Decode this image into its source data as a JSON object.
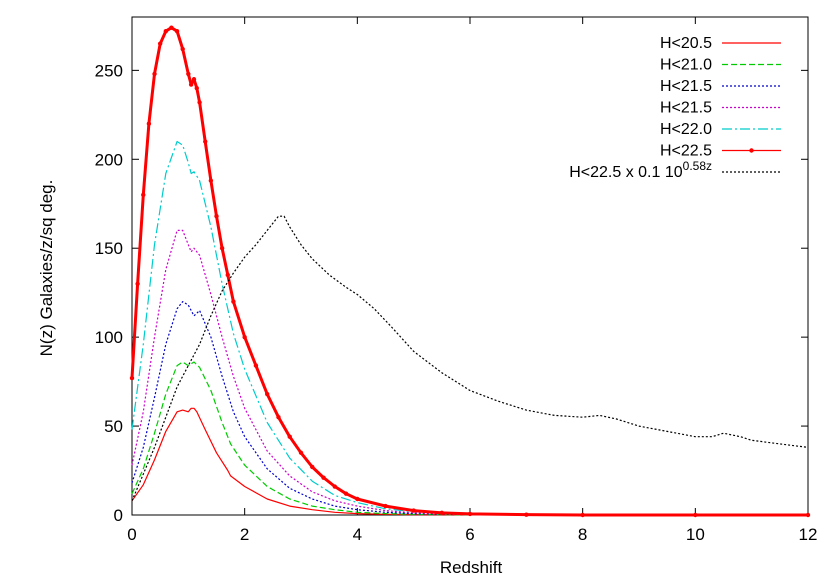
{
  "chart_data": {
    "type": "line",
    "title": "",
    "xlabel": "Redshift",
    "ylabel": "N(z) Galaxies/z/sq deg.",
    "xlim": [
      0,
      12
    ],
    "ylim": [
      0,
      280
    ],
    "xticks": [
      0,
      2,
      4,
      6,
      8,
      10,
      12
    ],
    "yticks": [
      0,
      50,
      100,
      150,
      200,
      250
    ],
    "grid": false,
    "legend_position": "top-right",
    "series": [
      {
        "name": "H<20.5",
        "color": "#ff0000",
        "style": "solid",
        "x": [
          0,
          0.2,
          0.4,
          0.6,
          0.8,
          0.9,
          1.0,
          1.05,
          1.1,
          1.15,
          1.3,
          1.5,
          1.7,
          1.75,
          2.0,
          2.4,
          2.8,
          3.2,
          3.6,
          4.0,
          4.5,
          5.0,
          6.0,
          8.0,
          10.0,
          12.0
        ],
        "y": [
          8,
          17,
          31,
          47,
          58,
          59,
          58,
          60,
          60,
          58,
          48,
          35,
          25,
          22,
          16,
          9,
          5,
          3,
          1.5,
          0.8,
          0.4,
          0.2,
          0.1,
          0,
          0,
          0
        ]
      },
      {
        "name": "H<21.0",
        "color": "#00cc00",
        "style": "dashed",
        "x": [
          0,
          0.2,
          0.4,
          0.6,
          0.8,
          0.9,
          1.0,
          1.1,
          1.2,
          1.4,
          1.6,
          1.75,
          2.0,
          2.4,
          2.8,
          3.2,
          3.6,
          4.0,
          4.5,
          5.0,
          6.0,
          8.0,
          10.0,
          12.0
        ],
        "y": [
          12,
          26,
          46,
          68,
          84,
          86,
          84,
          86,
          83,
          70,
          52,
          40,
          28,
          16,
          9,
          5,
          3,
          1.5,
          0.8,
          0.4,
          0.1,
          0,
          0,
          0
        ]
      },
      {
        "name": "H<21.5",
        "color": "#0000cc",
        "style": "dotted",
        "x": [
          0,
          0.2,
          0.4,
          0.6,
          0.8,
          0.9,
          1.0,
          1.1,
          1.2,
          1.4,
          1.6,
          1.8,
          2.0,
          2.4,
          2.8,
          3.2,
          3.6,
          4.0,
          4.5,
          5.0,
          6.0,
          8.0,
          10.0,
          12.0
        ],
        "y": [
          18,
          38,
          66,
          96,
          116,
          120,
          118,
          112,
          115,
          100,
          78,
          58,
          44,
          26,
          15,
          9,
          5,
          3,
          1.5,
          0.8,
          0.2,
          0,
          0,
          0
        ]
      },
      {
        "name": "H<21.5",
        "color": "#cc00cc",
        "style": "dotted",
        "x": [
          0,
          0.2,
          0.4,
          0.6,
          0.8,
          0.9,
          1.0,
          1.05,
          1.1,
          1.2,
          1.4,
          1.6,
          1.8,
          2.0,
          2.4,
          2.8,
          3.2,
          3.6,
          4.0,
          4.5,
          5.0,
          6.0,
          8.0,
          10.0,
          12.0
        ],
        "y": [
          28,
          58,
          100,
          138,
          160,
          160,
          152,
          148,
          150,
          146,
          124,
          100,
          78,
          60,
          36,
          22,
          13,
          8,
          5,
          2.5,
          1.2,
          0.3,
          0,
          0,
          0
        ]
      },
      {
        "name": "H<22.0",
        "color": "#00cccc",
        "style": "dashdot",
        "x": [
          0,
          0.2,
          0.4,
          0.6,
          0.8,
          0.9,
          1.0,
          1.05,
          1.1,
          1.2,
          1.4,
          1.6,
          1.8,
          2.0,
          2.4,
          2.8,
          3.2,
          3.6,
          4.0,
          4.5,
          5.0,
          6.0,
          8.0,
          10.0,
          12.0
        ],
        "y": [
          48,
          96,
          152,
          192,
          210,
          208,
          198,
          192,
          193,
          188,
          162,
          130,
          102,
          82,
          52,
          32,
          19,
          11,
          7,
          3.5,
          1.8,
          0.4,
          0,
          0,
          0
        ]
      },
      {
        "name": "H<22.5",
        "color": "#ff0000",
        "style": "points",
        "x": [
          0,
          0.1,
          0.2,
          0.3,
          0.4,
          0.5,
          0.6,
          0.7,
          0.8,
          0.9,
          1.0,
          1.05,
          1.1,
          1.15,
          1.2,
          1.3,
          1.4,
          1.5,
          1.6,
          1.7,
          1.8,
          2.0,
          2.2,
          2.4,
          2.6,
          2.8,
          3.0,
          3.2,
          3.4,
          3.6,
          3.8,
          4.0,
          4.5,
          5.0,
          5.5,
          6.0,
          7.0,
          8.0,
          10.0,
          12.0
        ],
        "y": [
          77,
          130,
          180,
          220,
          248,
          265,
          272,
          274,
          272,
          262,
          248,
          242,
          245,
          240,
          232,
          210,
          188,
          168,
          150,
          135,
          120,
          100,
          84,
          68,
          55,
          44,
          35,
          27,
          21,
          16,
          12,
          9,
          5,
          2.5,
          1.2,
          0.6,
          0.2,
          0,
          0,
          0
        ]
      },
      {
        "name": "H<22.5 x 0.1 10^0.58z",
        "color": "#000000",
        "style": "dotted",
        "x": [
          0,
          0.2,
          0.4,
          0.6,
          0.8,
          1.0,
          1.2,
          1.4,
          1.6,
          1.8,
          2.0,
          2.2,
          2.4,
          2.6,
          2.7,
          2.8,
          3.0,
          3.2,
          3.5,
          3.8,
          4.0,
          4.3,
          4.6,
          5.0,
          5.5,
          6.0,
          6.5,
          7.0,
          7.5,
          8.0,
          8.3,
          8.6,
          9.0,
          9.5,
          10.0,
          10.3,
          10.5,
          10.8,
          11.0,
          11.5,
          12.0
        ],
        "y": [
          8,
          23,
          38,
          55,
          72,
          84,
          96,
          112,
          126,
          136,
          145,
          152,
          160,
          168,
          168,
          162,
          152,
          144,
          135,
          128,
          124,
          116,
          106,
          92,
          80,
          70,
          64,
          59,
          56,
          55,
          56,
          54,
          50,
          47,
          44,
          44,
          46,
          44,
          42,
          40,
          38
        ]
      }
    ]
  },
  "legend": [
    {
      "label": "H<20.5"
    },
    {
      "label": "H<21.0"
    },
    {
      "label": "H<21.5"
    },
    {
      "label": "H<21.5"
    },
    {
      "label": "H<22.0"
    },
    {
      "label": "H<22.5"
    },
    {
      "label": "H<22.5 x 0.1 10",
      "sup": "0.58z"
    }
  ]
}
